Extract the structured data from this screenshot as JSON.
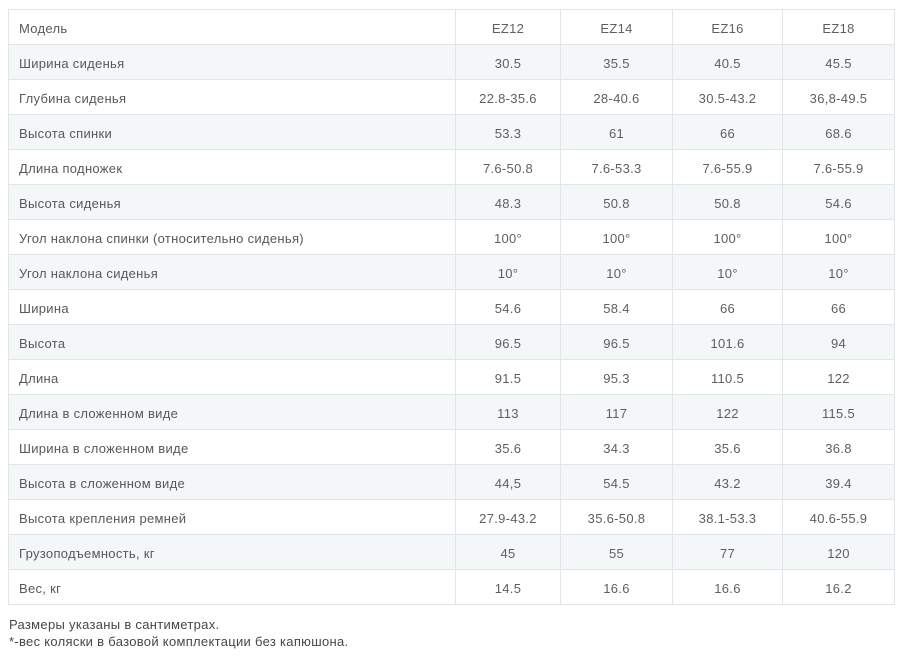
{
  "table": {
    "header": {
      "label": "Модель",
      "models": [
        "EZ12",
        "EZ14",
        "EZ16",
        "EZ18"
      ]
    },
    "rows": [
      {
        "label": "Ширина сиденья",
        "values": [
          "30.5",
          "35.5",
          "40.5",
          "45.5"
        ]
      },
      {
        "label": "Глубина сиденья",
        "values": [
          "22.8-35.6",
          "28-40.6",
          "30.5-43.2",
          "36,8-49.5"
        ]
      },
      {
        "label": "Высота спинки",
        "values": [
          "53.3",
          "61",
          "66",
          "68.6"
        ]
      },
      {
        "label": "Длина подножек",
        "values": [
          "7.6-50.8",
          "7.6-53.3",
          "7.6-55.9",
          "7.6-55.9"
        ]
      },
      {
        "label": "Высота сиденья",
        "values": [
          "48.3",
          "50.8",
          "50.8",
          "54.6"
        ]
      },
      {
        "label": "Угол наклона спинки (относительно сиденья)",
        "values": [
          "100°",
          "100°",
          "100°",
          "100°"
        ]
      },
      {
        "label": "Угол наклона сиденья",
        "values": [
          "10°",
          "10°",
          "10°",
          "10°"
        ]
      },
      {
        "label": "Ширина",
        "values": [
          "54.6",
          "58.4",
          "66",
          "66"
        ]
      },
      {
        "label": "Высота",
        "values": [
          "96.5",
          "96.5",
          "101.6",
          "94"
        ]
      },
      {
        "label": "Длина",
        "values": [
          "91.5",
          "95.3",
          "110.5",
          "122"
        ]
      },
      {
        "label": "Длина в сложенном виде",
        "values": [
          "113",
          "117",
          "122",
          "115.5"
        ]
      },
      {
        "label": "Ширина в сложенном виде",
        "values": [
          "35.6",
          "34.3",
          "35.6",
          "36.8"
        ]
      },
      {
        "label": "Высота в сложенном виде",
        "values": [
          "44,5",
          "54.5",
          "43.2",
          "39.4"
        ]
      },
      {
        "label": "Высота крепления ремней",
        "values": [
          "27.9-43.2",
          "35.6-50.8",
          "38.1-53.3",
          "40.6-55.9"
        ]
      },
      {
        "label": "Грузоподъемность, кг",
        "values": [
          "45",
          "55",
          "77",
          "120"
        ]
      },
      {
        "label": "Вес, кг",
        "values": [
          "14.5",
          "16.6",
          "16.6",
          "16.2"
        ]
      }
    ]
  },
  "footnotes": [
    "Размеры указаны в сантиметрах.",
    "*-вес коляски в базовой комплектации без капюшона."
  ],
  "colors": {
    "stripe_bg": "#f4f7f8",
    "border": "#e2e5e7",
    "table_text": "#5c6064",
    "footnote_text": "#43474b"
  }
}
